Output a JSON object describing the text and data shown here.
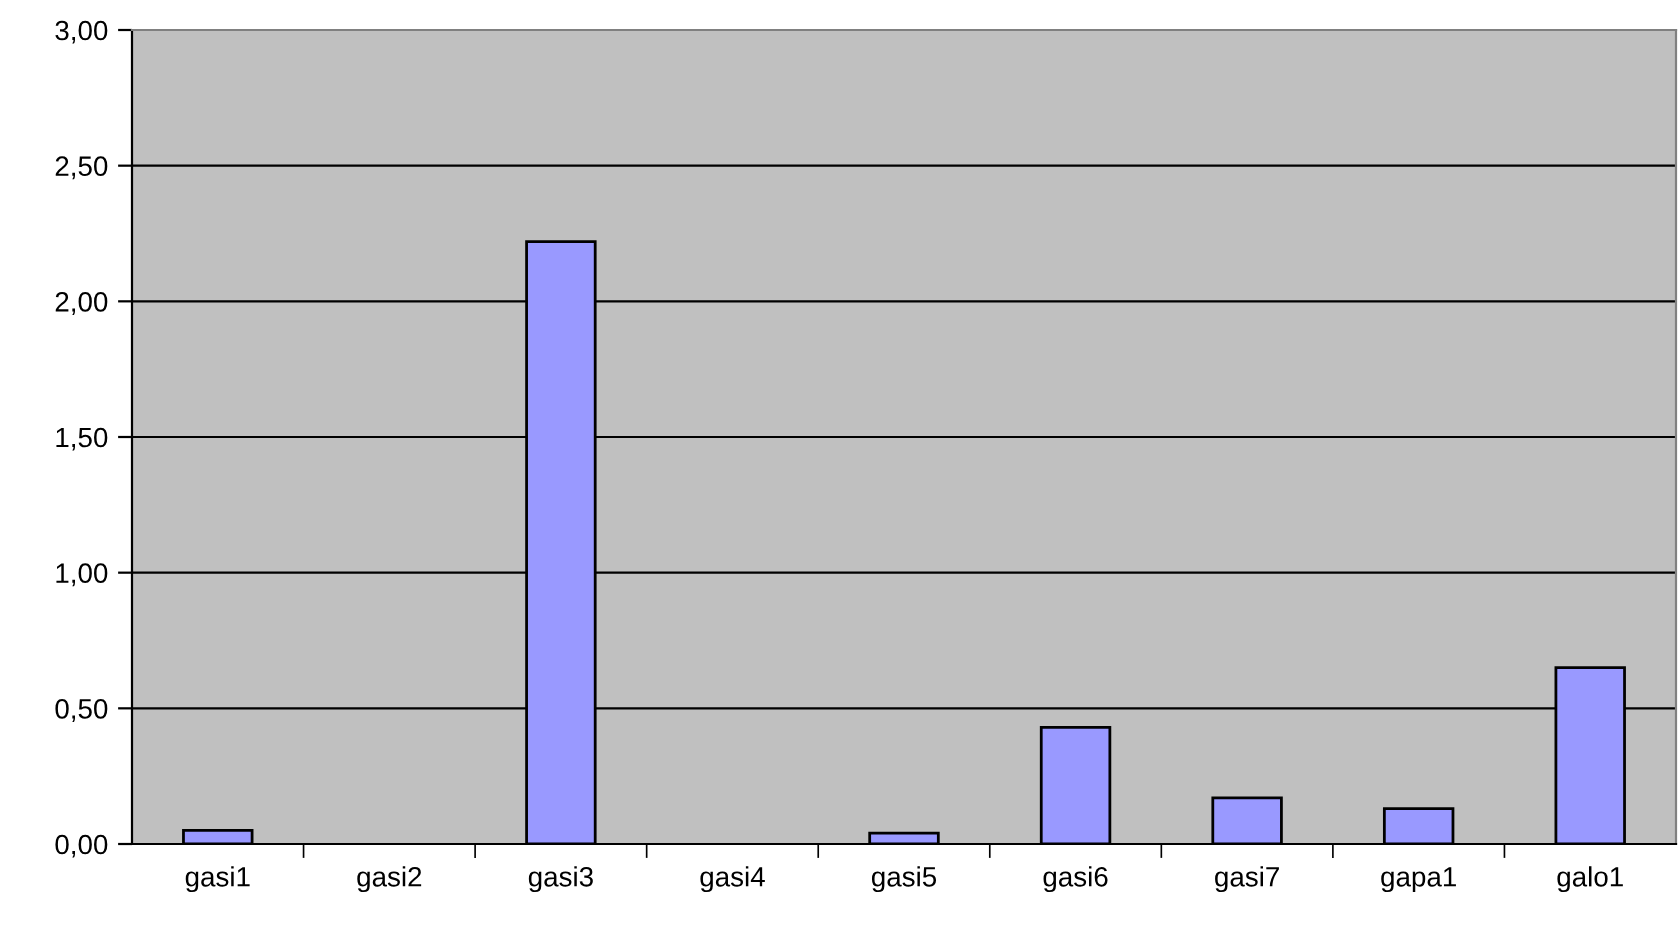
{
  "chart_data": {
    "type": "bar",
    "categories": [
      "gasi1",
      "gasi2",
      "gasi3",
      "gasi4",
      "gasi5",
      "gasi6",
      "gasi7",
      "gapa1",
      "galo1"
    ],
    "values": [
      0.05,
      0,
      2.22,
      0,
      0.04,
      0.43,
      0.17,
      0.13,
      0.65
    ],
    "color": "#9999ff",
    "ylim": [
      0,
      3
    ],
    "yticks": [
      {
        "value": 0,
        "label": "0,00"
      },
      {
        "value": 0.5,
        "label": "0,50"
      },
      {
        "value": 1,
        "label": "1,00"
      },
      {
        "value": 1.5,
        "label": "1,50"
      },
      {
        "value": 2,
        "label": "2,00"
      },
      {
        "value": 2.5,
        "label": "2,50"
      },
      {
        "value": 3,
        "label": "3,00"
      }
    ],
    "grid": "y"
  }
}
